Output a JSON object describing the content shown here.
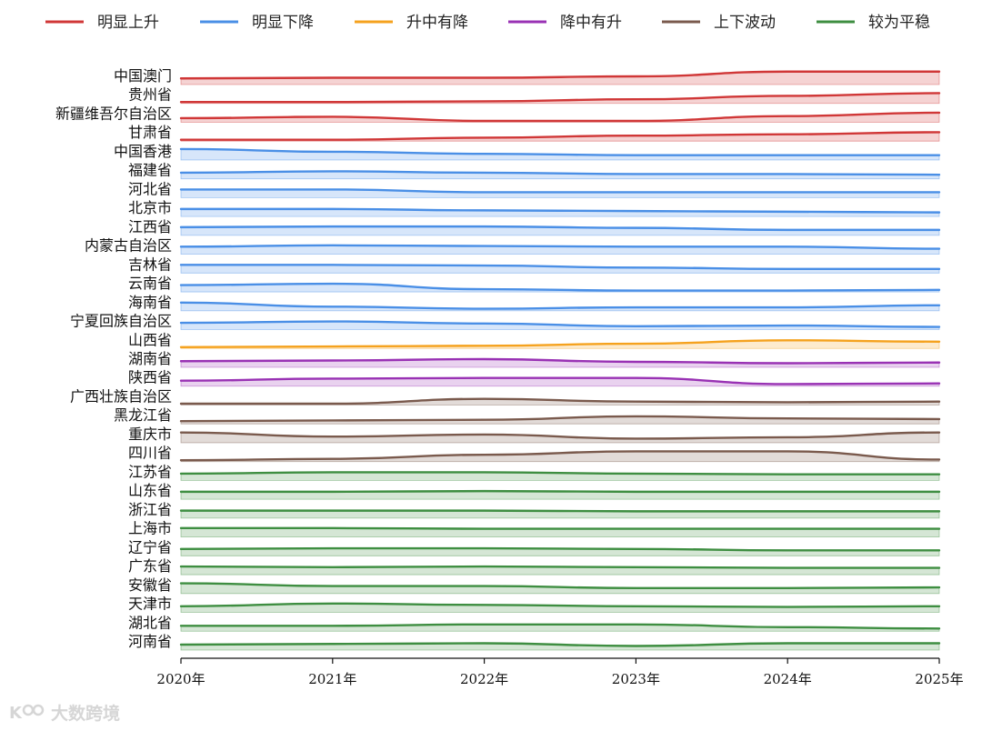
{
  "chart_data": {
    "type": "ridgeline",
    "title": "",
    "x": [
      "2020年",
      "2021年",
      "2022年",
      "2023年",
      "2024年",
      "2025年"
    ],
    "legend_position": "top",
    "groups": [
      {
        "key": "up",
        "label": "明显上升",
        "color": "#d03737"
      },
      {
        "key": "down",
        "label": "明显下降",
        "color": "#4a8fe6"
      },
      {
        "key": "updown",
        "label": "升中有降",
        "color": "#f5a21e"
      },
      {
        "key": "downup",
        "label": "降中有升",
        "color": "#9932b4"
      },
      {
        "key": "wave",
        "label": "上下波动",
        "color": "#7a5a4d"
      },
      {
        "key": "flat",
        "label": "较为平稳",
        "color": "#3e8e41"
      }
    ],
    "series": [
      {
        "name": "中国澳门",
        "group": "up",
        "values": [
          0.45,
          0.5,
          0.5,
          0.6,
          0.95,
          0.95
        ]
      },
      {
        "name": "贵州省",
        "group": "up",
        "values": [
          0.1,
          0.1,
          0.15,
          0.3,
          0.55,
          0.75
        ]
      },
      {
        "name": "新疆维吾尔自治区",
        "group": "up",
        "values": [
          0.3,
          0.4,
          0.1,
          0.1,
          0.45,
          0.7
        ]
      },
      {
        "name": "甘肃省",
        "group": "up",
        "values": [
          0.1,
          0.1,
          0.25,
          0.4,
          0.5,
          0.65
        ]
      },
      {
        "name": "中国香港",
        "group": "down",
        "values": [
          0.8,
          0.6,
          0.45,
          0.35,
          0.35,
          0.35
        ]
      },
      {
        "name": "福建省",
        "group": "down",
        "values": [
          0.45,
          0.55,
          0.45,
          0.35,
          0.35,
          0.3
        ]
      },
      {
        "name": "河北省",
        "group": "down",
        "values": [
          0.6,
          0.6,
          0.4,
          0.4,
          0.4,
          0.4
        ]
      },
      {
        "name": "北京市",
        "group": "down",
        "values": [
          0.55,
          0.55,
          0.45,
          0.4,
          0.35,
          0.3
        ]
      },
      {
        "name": "江西省",
        "group": "down",
        "values": [
          0.6,
          0.65,
          0.65,
          0.55,
          0.4,
          0.4
        ]
      },
      {
        "name": "内蒙古自治区",
        "group": "down",
        "values": [
          0.55,
          0.65,
          0.6,
          0.55,
          0.55,
          0.4
        ]
      },
      {
        "name": "吉林省",
        "group": "down",
        "values": [
          0.6,
          0.6,
          0.55,
          0.4,
          0.3,
          0.3
        ]
      },
      {
        "name": "云南省",
        "group": "down",
        "values": [
          0.5,
          0.6,
          0.2,
          0.1,
          0.1,
          0.15
        ]
      },
      {
        "name": "海南省",
        "group": "down",
        "values": [
          0.6,
          0.3,
          0.15,
          0.25,
          0.25,
          0.4
        ]
      },
      {
        "name": "宁夏回族自治区",
        "group": "down",
        "values": [
          0.5,
          0.6,
          0.45,
          0.25,
          0.3,
          0.2
        ]
      },
      {
        "name": "山西省",
        "group": "updown",
        "values": [
          0.1,
          0.15,
          0.2,
          0.35,
          0.6,
          0.5
        ]
      },
      {
        "name": "湖南省",
        "group": "downup",
        "values": [
          0.45,
          0.5,
          0.6,
          0.4,
          0.3,
          0.35
        ]
      },
      {
        "name": "陕西省",
        "group": "downup",
        "values": [
          0.4,
          0.55,
          0.6,
          0.6,
          0.15,
          0.2
        ]
      },
      {
        "name": "广西壮族自治区",
        "group": "wave",
        "values": [
          0.1,
          0.1,
          0.45,
          0.25,
          0.2,
          0.25
        ]
      },
      {
        "name": "黑龙江省",
        "group": "wave",
        "values": [
          0.2,
          0.25,
          0.3,
          0.55,
          0.4,
          0.35
        ]
      },
      {
        "name": "重庆市",
        "group": "wave",
        "values": [
          0.75,
          0.45,
          0.6,
          0.3,
          0.4,
          0.75
        ]
      },
      {
        "name": "四川省",
        "group": "wave",
        "values": [
          0.1,
          0.2,
          0.5,
          0.75,
          0.75,
          0.15
        ]
      },
      {
        "name": "江苏省",
        "group": "flat",
        "values": [
          0.5,
          0.6,
          0.6,
          0.5,
          0.45,
          0.45
        ]
      },
      {
        "name": "山东省",
        "group": "flat",
        "values": [
          0.55,
          0.55,
          0.6,
          0.55,
          0.55,
          0.55
        ]
      },
      {
        "name": "浙江省",
        "group": "flat",
        "values": [
          0.55,
          0.55,
          0.55,
          0.5,
          0.5,
          0.5
        ]
      },
      {
        "name": "上海市",
        "group": "flat",
        "values": [
          0.65,
          0.65,
          0.6,
          0.6,
          0.6,
          0.6
        ]
      },
      {
        "name": "辽宁省",
        "group": "flat",
        "values": [
          0.5,
          0.55,
          0.55,
          0.5,
          0.4,
          0.4
        ]
      },
      {
        "name": "广东省",
        "group": "flat",
        "values": [
          0.6,
          0.55,
          0.6,
          0.55,
          0.5,
          0.5
        ]
      },
      {
        "name": "安徽省",
        "group": "flat",
        "values": [
          0.75,
          0.55,
          0.55,
          0.4,
          0.4,
          0.45
        ]
      },
      {
        "name": "天津市",
        "group": "flat",
        "values": [
          0.45,
          0.65,
          0.55,
          0.45,
          0.4,
          0.45
        ]
      },
      {
        "name": "湖北省",
        "group": "flat",
        "values": [
          0.4,
          0.4,
          0.5,
          0.5,
          0.3,
          0.2
        ]
      },
      {
        "name": "河南省",
        "group": "flat",
        "values": [
          0.4,
          0.45,
          0.5,
          0.3,
          0.5,
          0.5
        ]
      }
    ]
  },
  "watermark": {
    "text": "大数跨境",
    "icon": "logo-icon"
  }
}
